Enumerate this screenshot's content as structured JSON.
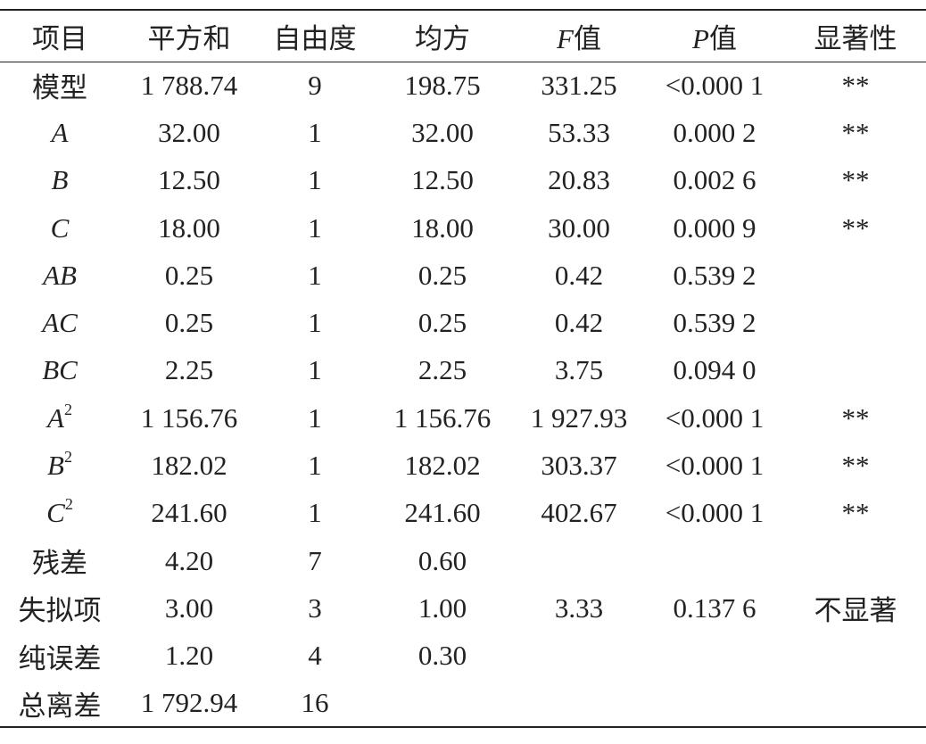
{
  "table": {
    "header": [
      "项目",
      "平方和",
      "自由度",
      "均方",
      {
        "var": "F",
        "text": "值"
      },
      {
        "var": "P",
        "text": "值"
      },
      "显著性"
    ],
    "rows": [
      [
        "模型",
        "1 788.74",
        "9",
        "198.75",
        "331.25",
        "<0.000 1",
        "**"
      ],
      [
        {
          "var": "A"
        },
        "32.00",
        "1",
        "32.00",
        "53.33",
        "0.000 2",
        "**"
      ],
      [
        {
          "var": "B"
        },
        "12.50",
        "1",
        "12.50",
        "20.83",
        "0.002 6",
        "**"
      ],
      [
        {
          "var": "C"
        },
        "18.00",
        "1",
        "18.00",
        "30.00",
        "0.000 9",
        "**"
      ],
      [
        {
          "var": "AB"
        },
        "0.25",
        "1",
        "0.25",
        "0.42",
        "0.539 2",
        null
      ],
      [
        {
          "var": "AC"
        },
        "0.25",
        "1",
        "0.25",
        "0.42",
        "0.539 2",
        null
      ],
      [
        {
          "var": "BC"
        },
        "2.25",
        "1",
        "2.25",
        "3.75",
        "0.094 0",
        null
      ],
      [
        {
          "var": "A",
          "sup": "2"
        },
        "1 156.76",
        "1",
        "1 156.76",
        "1 927.93",
        "<0.000 1",
        "**"
      ],
      [
        {
          "var": "B",
          "sup": "2"
        },
        "182.02",
        "1",
        "182.02",
        "303.37",
        "<0.000 1",
        "**"
      ],
      [
        {
          "var": "C",
          "sup": "2"
        },
        "241.60",
        "1",
        "241.60",
        "402.67",
        "<0.000 1",
        "**"
      ],
      [
        "残差",
        "4.20",
        "7",
        "0.60",
        null,
        null,
        null
      ],
      [
        "失拟项",
        "3.00",
        "3",
        "1.00",
        "3.33",
        "0.137 6",
        "不显著"
      ],
      [
        "纯误差",
        "1.20",
        "4",
        "0.30",
        null,
        null,
        null
      ],
      [
        "总离差",
        "1 792.94",
        "16",
        null,
        null,
        null,
        null
      ]
    ]
  }
}
